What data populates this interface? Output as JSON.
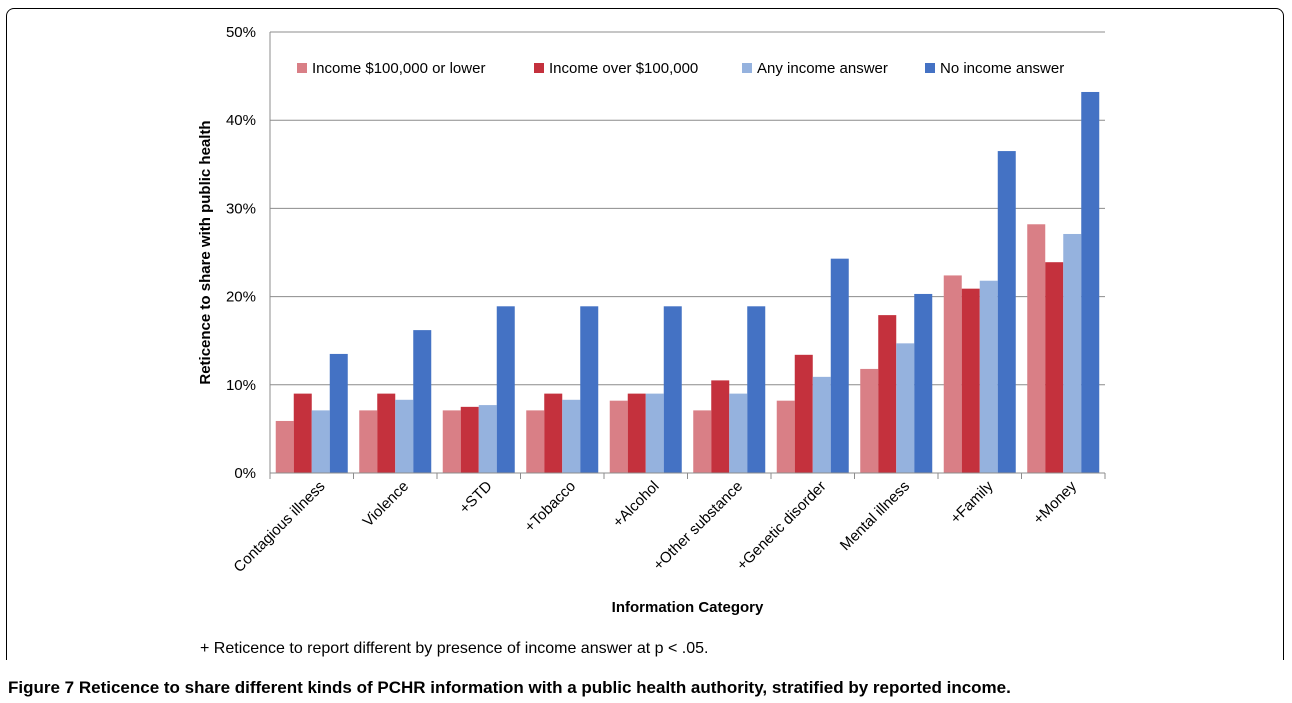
{
  "figure": {
    "label": "Figure 7",
    "caption": "Reticence to share different kinds of PCHR information with a public health authority, stratified by reported income.",
    "footnote": "+ Reticence to report different by presence of income answer at p < .05."
  },
  "chart_data": {
    "type": "bar",
    "title": "",
    "xlabel": "Information Category",
    "ylabel": "Reticence to share with public health",
    "ylim": [
      0,
      50
    ],
    "yticks": [
      "0%",
      "10%",
      "20%",
      "30%",
      "40%",
      "50%"
    ],
    "y_tick_values": [
      0,
      10,
      20,
      30,
      40,
      50
    ],
    "grid": true,
    "legend_position": "top",
    "categories": [
      "Contagious illness",
      "Violence",
      "+STD",
      "+Tobacco",
      "+Alcohol",
      "+Other substance",
      "+Genetic disorder",
      "Mental illness",
      "+Family",
      "+Money"
    ],
    "series": [
      {
        "name": "Income $100,000 or lower",
        "color": "#d97f86",
        "values": [
          5.9,
          7.1,
          7.1,
          7.1,
          8.2,
          7.1,
          8.2,
          11.8,
          22.4,
          28.2
        ]
      },
      {
        "name": "Income over $100,000",
        "color": "#c4313d",
        "values": [
          9.0,
          9.0,
          7.5,
          9.0,
          9.0,
          10.5,
          13.4,
          17.9,
          20.9,
          23.9
        ]
      },
      {
        "name": "Any income answer",
        "color": "#95b2de",
        "values": [
          7.1,
          8.3,
          7.7,
          8.3,
          9.0,
          9.0,
          10.9,
          14.7,
          21.8,
          27.1
        ]
      },
      {
        "name": "No income answer",
        "color": "#4472c4",
        "values": [
          13.5,
          16.2,
          18.9,
          18.9,
          18.9,
          18.9,
          24.3,
          20.3,
          36.5,
          43.2
        ]
      }
    ]
  }
}
